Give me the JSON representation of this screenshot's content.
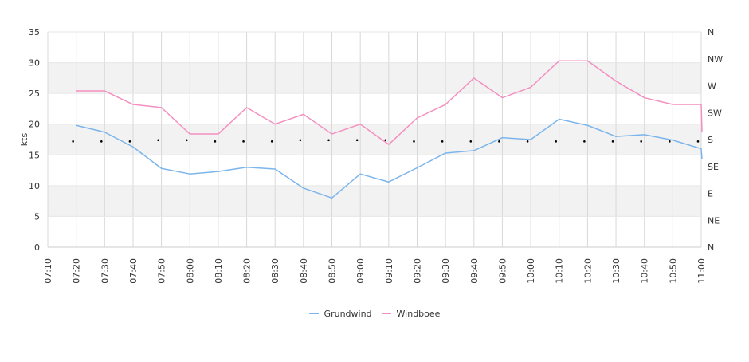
{
  "chart_data": {
    "type": "line",
    "title": "",
    "xlabel": "",
    "ylabel": "kts",
    "ylim": [
      0,
      35
    ],
    "y_ticks": [
      "0",
      "5",
      "10",
      "15",
      "20",
      "25",
      "30",
      "35"
    ],
    "y2_ticks": [
      "N",
      "NE",
      "E",
      "SE",
      "S",
      "SW",
      "W",
      "NW",
      "N"
    ],
    "grid": true,
    "alternating_bands": true,
    "legend_position": "bottom",
    "x_ticks": [
      "07:10",
      "07:20",
      "07:30",
      "07:40",
      "07:50",
      "08:00",
      "08:10",
      "08:20",
      "08:30",
      "08:40",
      "08:50",
      "09:00",
      "09:10",
      "09:20",
      "09:30",
      "09:40",
      "09:50",
      "10:00",
      "10:10",
      "10:20",
      "10:30",
      "10:40",
      "10:50",
      "11:00"
    ],
    "x": [
      "07:20",
      "07:30",
      "07:40",
      "07:50",
      "08:00",
      "08:10",
      "08:20",
      "08:30",
      "08:40",
      "08:50",
      "09:00",
      "09:10",
      "09:20",
      "09:30",
      "09:40",
      "09:50",
      "10:00",
      "10:10",
      "10:20",
      "10:30",
      "10:40",
      "10:50",
      "11:00"
    ],
    "series": [
      {
        "name": "Grundwind",
        "color": "#7cb5ec",
        "values": [
          19.8,
          18.7,
          16.3,
          12.8,
          11.9,
          12.3,
          13.0,
          12.7,
          9.6,
          8.0,
          11.9,
          10.6,
          12.9,
          15.3,
          15.7,
          17.8,
          17.5,
          20.8,
          19.8,
          18.0,
          18.3,
          17.4,
          16.0
        ]
      },
      {
        "name": "Windboee",
        "color": "#f48fbf",
        "values": [
          25.4,
          25.4,
          23.2,
          22.7,
          18.4,
          18.4,
          22.7,
          20.0,
          21.6,
          18.4,
          20.0,
          16.7,
          21.0,
          23.2,
          27.5,
          24.3,
          26.0,
          30.3,
          30.3,
          27.0,
          24.3,
          23.2,
          23.2
        ]
      }
    ],
    "direction_markers_y": [
      17.2,
      17.2,
      17.2,
      17.4,
      17.4,
      17.2,
      17.2,
      17.2,
      17.4,
      17.4,
      17.4,
      17.4,
      17.2,
      17.2,
      17.2,
      17.2,
      17.2,
      17.2,
      17.2,
      17.2,
      17.2,
      17.2,
      17.2
    ]
  }
}
